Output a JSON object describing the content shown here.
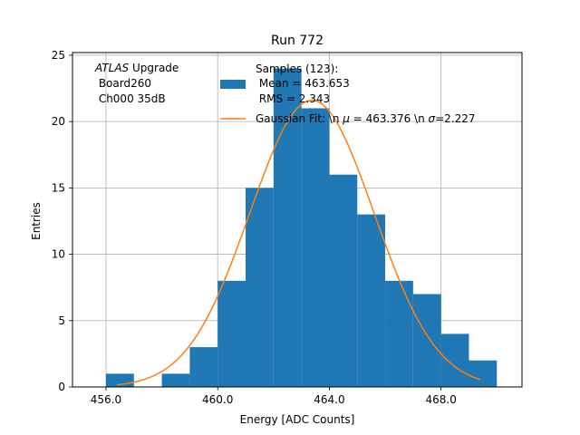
{
  "chart_data": {
    "type": "bar",
    "title": "Run 772",
    "xlabel": "Energy [ADC Counts]",
    "ylabel": "Entries",
    "xlim": [
      454.8,
      470.9
    ],
    "ylim": [
      0,
      25.2
    ],
    "xticks": [
      456.0,
      460.0,
      464.0,
      468.0
    ],
    "xtick_labels": [
      "456.0",
      "460.0",
      "464.0",
      "468.0"
    ],
    "yticks": [
      0,
      5,
      10,
      15,
      20,
      25
    ],
    "ytick_labels": [
      "0",
      "5",
      "10",
      "15",
      "20",
      "25"
    ],
    "grid": true,
    "legend_position": "top-center",
    "colors": {
      "histogram": "#1f77b4",
      "fit": "#ff7f0e",
      "grid": "#b0b0b0"
    },
    "series": [
      {
        "name": "Samples (123):\n Mean = 463.653\n RMS = 2.343",
        "kind": "histogram",
        "bin_width": 1.0,
        "bins": [
          {
            "x0": 456.0,
            "count": 1
          },
          {
            "x0": 457.0,
            "count": 0
          },
          {
            "x0": 458.0,
            "count": 1
          },
          {
            "x0": 459.0,
            "count": 3
          },
          {
            "x0": 460.0,
            "count": 8
          },
          {
            "x0": 461.0,
            "count": 15
          },
          {
            "x0": 462.0,
            "count": 24
          },
          {
            "x0": 463.0,
            "count": 21
          },
          {
            "x0": 464.0,
            "count": 16
          },
          {
            "x0": 465.0,
            "count": 13
          },
          {
            "x0": 466.0,
            "count": 8
          },
          {
            "x0": 467.0,
            "count": 7
          },
          {
            "x0": 468.0,
            "count": 4
          },
          {
            "x0": 469.0,
            "count": 2
          }
        ]
      },
      {
        "name": "Gaussian Fit: \\n $\\mu$ = 463.376 \\n $\\sigma$=2.227",
        "kind": "line",
        "amplitude": 21.6,
        "mu": 463.376,
        "sigma": 2.227,
        "x_range": [
          456.4,
          469.4
        ]
      }
    ],
    "legend": {
      "hist_lines": [
        "Samples (123):",
        " Mean = 463.653",
        " RMS = 2.343"
      ],
      "fit_label_prefix": "Gaussian Fit: \\n ",
      "fit_mu_symbol": "μ",
      "fit_mu_value": " = 463.376 \\n ",
      "fit_sigma_symbol": "σ",
      "fit_sigma_value": "=2.227"
    },
    "annotation": {
      "italic": "ATLAS",
      "rest": " Upgrade",
      "line2": " Board260",
      "line3": " Ch000 35dB"
    }
  }
}
